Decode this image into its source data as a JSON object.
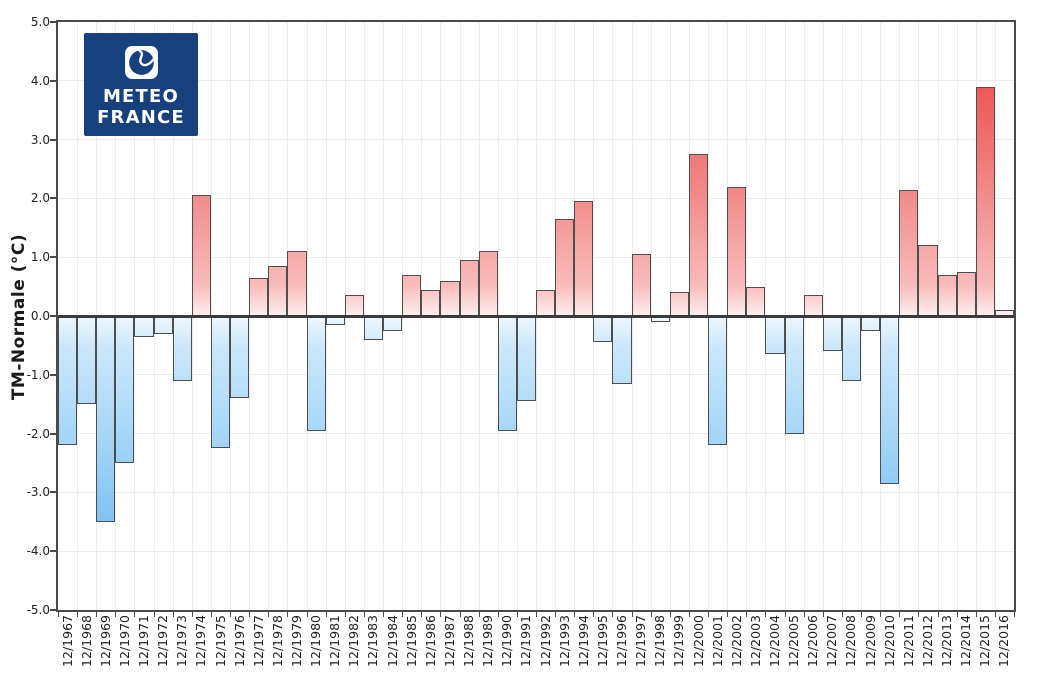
{
  "logo": {
    "line1": "METEO",
    "line2": "FRANCE",
    "background_color": "#16407E",
    "text_color": "#FFFFFF"
  },
  "chart_data": {
    "type": "bar",
    "title": "",
    "xlabel": "",
    "ylabel": "TM-Normale (°C)",
    "ylim": [
      -5.0,
      5.0
    ],
    "grid": true,
    "legend": false,
    "y_ticks": [
      "5.0",
      "4.0",
      "3.0",
      "2.0",
      "1.0",
      "0.0",
      "-1.0",
      "-2.0",
      "-3.0",
      "-4.0",
      "-5.0"
    ],
    "categories": [
      "12/1967",
      "12/1968",
      "12/1969",
      "12/1970",
      "12/1971",
      "12/1972",
      "12/1973",
      "12/1974",
      "12/1975",
      "12/1976",
      "12/1977",
      "12/1978",
      "12/1979",
      "12/1980",
      "12/1981",
      "12/1982",
      "12/1983",
      "12/1984",
      "12/1985",
      "12/1986",
      "12/1987",
      "12/1988",
      "12/1989",
      "12/1990",
      "12/1991",
      "12/1992",
      "12/1993",
      "12/1994",
      "12/1995",
      "12/1996",
      "12/1997",
      "12/1998",
      "12/1999",
      "12/2000",
      "12/2001",
      "12/2002",
      "12/2003",
      "12/2004",
      "12/2005",
      "12/2006",
      "12/2007",
      "12/2008",
      "12/2009",
      "12/2010",
      "12/2011",
      "12/2012",
      "12/2013",
      "12/2014",
      "12/2015",
      "12/2016"
    ],
    "values": [
      -2.2,
      -1.5,
      -3.5,
      -2.5,
      -0.35,
      -0.3,
      -1.1,
      2.05,
      -2.25,
      -1.4,
      0.65,
      0.85,
      1.1,
      -1.95,
      -0.15,
      0.35,
      -0.4,
      -0.25,
      0.7,
      0.45,
      0.6,
      0.95,
      1.1,
      -1.95,
      -1.45,
      0.45,
      1.65,
      1.95,
      -0.45,
      -1.15,
      1.05,
      -0.1,
      0.4,
      2.75,
      -2.2,
      2.2,
      0.5,
      -0.65,
      -2.0,
      0.35,
      -0.6,
      -1.1,
      -0.25,
      -2.85,
      2.15,
      1.2,
      0.7,
      0.75,
      3.9,
      0.1
    ],
    "colors": {
      "positive_bar_strong": "#E8403A",
      "positive_bar_base": "#FDEDED",
      "negative_bar_strong": "#5EB1EF",
      "negative_bar_base": "#EDF6FE",
      "bar_border": "#4E4E4E",
      "zero_line": "#3A3A3A",
      "axis_frame": "#4A4A4A",
      "gridline": "#ECECEC"
    }
  }
}
